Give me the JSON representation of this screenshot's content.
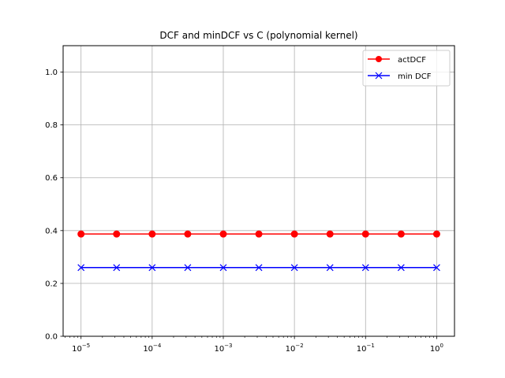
{
  "chart_data": {
    "type": "line",
    "title": "DCF and minDCF vs C (polynomial kernel)",
    "xlabel": "",
    "ylabel": "",
    "xscale": "log",
    "x": [
      1e-05,
      3.1623e-05,
      0.0001,
      0.00031623,
      0.001,
      0.0031623,
      0.01,
      0.031623,
      0.1,
      0.31623,
      1
    ],
    "xlim": [
      5.6e-06,
      1.78
    ],
    "ylim": [
      0.0,
      1.1
    ],
    "xticks": [
      1e-05,
      0.0001,
      0.001,
      0.01,
      0.1,
      1
    ],
    "xtick_labels": [
      {
        "base": "10",
        "exp": "−5"
      },
      {
        "base": "10",
        "exp": "−4"
      },
      {
        "base": "10",
        "exp": "−3"
      },
      {
        "base": "10",
        "exp": "−2"
      },
      {
        "base": "10",
        "exp": "−1"
      },
      {
        "base": "10",
        "exp": "0"
      }
    ],
    "yticks": [
      0.0,
      0.2,
      0.4,
      0.6,
      0.8,
      1.0
    ],
    "ytick_labels": [
      "0.0",
      "0.2",
      "0.4",
      "0.6",
      "0.8",
      "1.0"
    ],
    "grid": true,
    "legend_position": "top-right",
    "series": [
      {
        "name": "actDCF",
        "color": "#ff0000",
        "marker": "circle",
        "values": [
          0.387,
          0.387,
          0.387,
          0.387,
          0.387,
          0.387,
          0.387,
          0.387,
          0.387,
          0.387,
          0.387
        ]
      },
      {
        "name": "min DCF",
        "color": "#0000ff",
        "marker": "x",
        "values": [
          0.26,
          0.26,
          0.26,
          0.26,
          0.26,
          0.26,
          0.26,
          0.26,
          0.26,
          0.26,
          0.26
        ]
      }
    ]
  }
}
